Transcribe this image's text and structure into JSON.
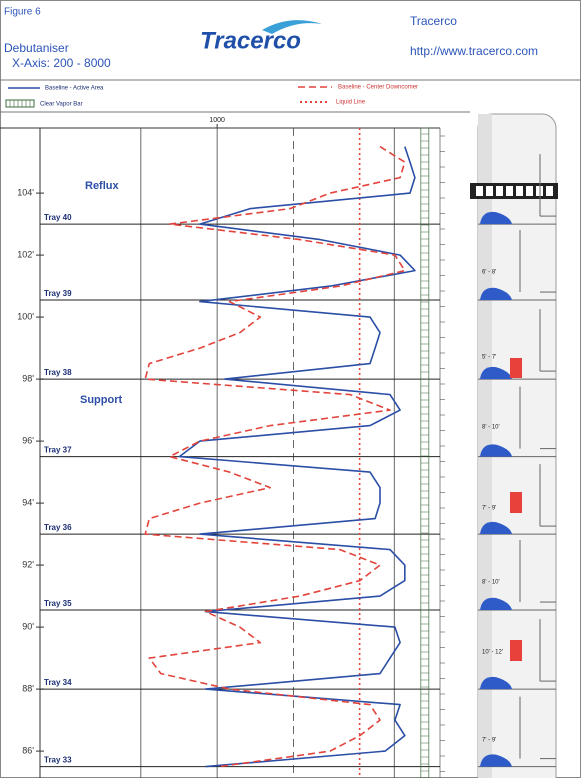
{
  "header": {
    "figure": "Figure 6",
    "column": "Debutaniser",
    "x_axis_note": "X-Axis: 200 - 8000",
    "logo": "Tracerco",
    "company": "Tracerco",
    "url": "http://www.tracerco.com"
  },
  "chart_data": {
    "type": "line",
    "orientation": "vertical",
    "x_log": true,
    "xlim": [
      200,
      8000
    ],
    "xticks": [
      1000
    ],
    "xgrid": [
      500,
      1000,
      2000,
      5000
    ],
    "ylim": [
      85.1,
      106.1
    ],
    "yticks": [
      {
        "value": 104,
        "label": "104'"
      },
      {
        "value": 102,
        "label": "102'"
      },
      {
        "value": 100,
        "label": "100'"
      },
      {
        "value": 98,
        "label": "98'"
      },
      {
        "value": 96,
        "label": "96'"
      },
      {
        "value": 94,
        "label": "94'"
      },
      {
        "value": 92,
        "label": "92'"
      },
      {
        "value": 90,
        "label": "90'"
      },
      {
        "value": 88,
        "label": "88'"
      },
      {
        "value": 86,
        "label": "86'"
      }
    ],
    "y": [
      105.5,
      105,
      104.5,
      104,
      103.5,
      103,
      102.5,
      102,
      101.5,
      101,
      100.5,
      100,
      99.5,
      99,
      98.5,
      98,
      97.5,
      97,
      96.5,
      96,
      95.5,
      95,
      94.5,
      94,
      93.5,
      93,
      92.5,
      92,
      91.5,
      91,
      90.5,
      90,
      89.5,
      89,
      88.5,
      88,
      87.5,
      87,
      86.5,
      86,
      85.5
    ],
    "series": [
      {
        "name": "Baseline - Active Area",
        "color": "#2b4ea6",
        "dash": "solid",
        "values": [
          5500,
          5770,
          6030,
          5770,
          1350,
          855,
          2550,
          5270,
          6030,
          2790,
          855,
          4010,
          4390,
          4200,
          4010,
          1070,
          4810,
          5270,
          4010,
          855,
          710,
          4010,
          4390,
          4390,
          4200,
          855,
          4810,
          5500,
          5500,
          4390,
          900,
          5030,
          5270,
          4810,
          4390,
          900,
          5270,
          5030,
          5500,
          4600,
          900
        ]
      },
      {
        "name": "Baseline - Center Downcomer",
        "color": "#e2443c",
        "dash": "dashed",
        "values": [
          4390,
          5500,
          5270,
          2790,
          1940,
          650,
          2120,
          5030,
          5500,
          3050,
          1120,
          1480,
          1230,
          855,
          540,
          520,
          3350,
          4810,
          1620,
          855,
          650,
          1120,
          1620,
          855,
          540,
          520,
          3050,
          4390,
          3660,
          2120,
          900,
          1230,
          1480,
          540,
          600,
          1120,
          4010,
          4390,
          3660,
          2790,
          1020
        ]
      }
    ],
    "liquid_line": {
      "name": "Liquid Line",
      "value": 3650,
      "color": "#e2443c"
    },
    "clear_vapor_bar": {
      "name": "Clear Vapor Bar",
      "value": 6600,
      "color": "#3c6b3c"
    },
    "trays": [
      {
        "label": "Tray 40",
        "y": 103
      },
      {
        "label": "Tray 39",
        "y": 100.55
      },
      {
        "label": "Tray 38",
        "y": 98
      },
      {
        "label": "Tray 37",
        "y": 95.5
      },
      {
        "label": "Tray 36",
        "y": 93
      },
      {
        "label": "Tray 35",
        "y": 90.55
      },
      {
        "label": "Tray 34",
        "y": 88
      },
      {
        "label": "Tray 33",
        "y": 85.5
      }
    ],
    "annotations": [
      "Reflux",
      "Support"
    ]
  },
  "column_diagram": {
    "labels": [
      "6' - 8'",
      "5' - 7'",
      "8' - 10'",
      "7' - 9'",
      "8' - 10'",
      "10' - 12'",
      "7' - 9'"
    ]
  }
}
